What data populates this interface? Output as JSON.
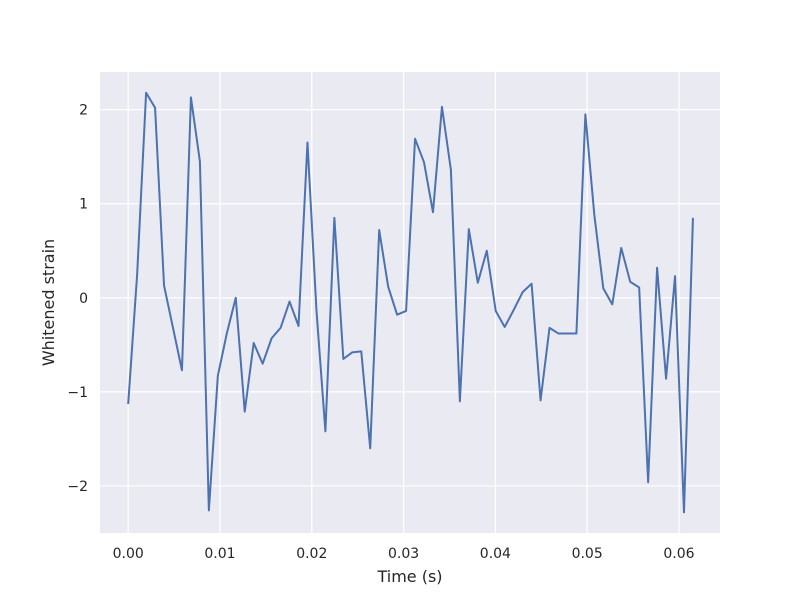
{
  "chart_data": {
    "type": "line",
    "title": "",
    "xlabel": "Time (s)",
    "ylabel": "Whitened strain",
    "xlim": [
      -0.00307,
      0.06447
    ],
    "ylim": [
      -2.5,
      2.4
    ],
    "grid": true,
    "legend": "none",
    "xticks": [
      0.0,
      0.01,
      0.02,
      0.03,
      0.04,
      0.05,
      0.06
    ],
    "xtick_labels": [
      "0.00",
      "0.01",
      "0.02",
      "0.03",
      "0.04",
      "0.05",
      "0.06"
    ],
    "yticks": [
      -2,
      -1,
      0,
      1,
      2
    ],
    "ytick_labels": [
      "−2",
      "−1",
      "0",
      "1",
      "2"
    ],
    "colors": {
      "line": "#4c72b0",
      "axes_bg": "#eaeaf2",
      "grid": "#ffffff"
    },
    "series": [
      {
        "x": [
          0.0,
          0.000977,
          0.001953,
          0.00293,
          0.003906,
          0.004883,
          0.005859,
          0.006836,
          0.007813,
          0.008789,
          0.009766,
          0.010742,
          0.011719,
          0.012695,
          0.013672,
          0.014648,
          0.015625,
          0.016602,
          0.017578,
          0.018555,
          0.019531,
          0.020508,
          0.021484,
          0.022461,
          0.023438,
          0.024414,
          0.025391,
          0.026367,
          0.027344,
          0.02832,
          0.029297,
          0.030273,
          0.03125,
          0.032227,
          0.033203,
          0.03418,
          0.035156,
          0.036133,
          0.037109,
          0.038086,
          0.039063,
          0.040039,
          0.041016,
          0.041992,
          0.042969,
          0.043945,
          0.044922,
          0.045898,
          0.046875,
          0.047852,
          0.048828,
          0.049805,
          0.050781,
          0.051758,
          0.052734,
          0.053711,
          0.054688,
          0.055664,
          0.056641,
          0.057617,
          0.058594,
          0.05957,
          0.060547,
          0.061523
        ],
        "values": [
          -1.13,
          0.25,
          2.18,
          2.02,
          0.13,
          -0.32,
          -0.77,
          2.13,
          1.45,
          -2.26,
          -0.83,
          -0.38,
          0.0,
          -1.21,
          -0.48,
          -0.7,
          -0.43,
          -0.32,
          -0.04,
          -0.3,
          1.65,
          -0.13,
          -1.42,
          0.85,
          -0.65,
          -0.58,
          -0.57,
          -1.6,
          0.72,
          0.12,
          -0.18,
          -0.14,
          1.69,
          1.44,
          0.91,
          2.03,
          1.36,
          -1.1,
          0.73,
          0.16,
          0.5,
          -0.14,
          -0.31,
          -0.13,
          0.06,
          0.15,
          -1.09,
          -0.32,
          -0.38,
          -0.38,
          -0.38,
          1.95,
          0.88,
          0.1,
          -0.07,
          0.53,
          0.17,
          0.11,
          -1.96,
          0.32,
          -0.86,
          0.23,
          -2.28,
          0.85
        ]
      }
    ]
  }
}
